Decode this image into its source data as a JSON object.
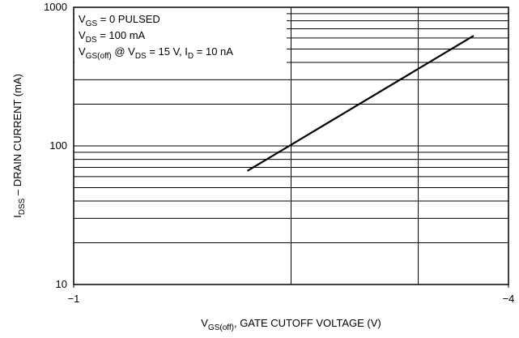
{
  "chart_data": {
    "type": "line",
    "xlabel": [
      {
        "text": "V"
      },
      {
        "text": "GS(off)",
        "sub": true
      },
      {
        "text": ", GATE CUTOFF VOLTAGE (V)"
      }
    ],
    "ylabel": [
      {
        "text": "I"
      },
      {
        "text": "DSS",
        "sub": true
      },
      {
        "text": " – DRAIN CURRENT (mA)"
      }
    ],
    "annotations": [
      [
        {
          "text": "V"
        },
        {
          "text": "GS",
          "sub": true
        },
        {
          "text": " = 0 PULSED"
        }
      ],
      [
        {
          "text": "V"
        },
        {
          "text": "DS",
          "sub": true
        },
        {
          "text": " = 100 mA"
        }
      ],
      [
        {
          "text": "V"
        },
        {
          "text": "GS(off)",
          "sub": true
        },
        {
          "text": " @ V"
        },
        {
          "text": "DS",
          "sub": true
        },
        {
          "text": " = 15 V, I"
        },
        {
          "text": "D",
          "sub": true
        },
        {
          "text": " = 10 nA"
        }
      ]
    ],
    "xscale": "log",
    "yscale": "log",
    "xlim": [
      -1,
      -4
    ],
    "ylim": [
      10,
      1000
    ],
    "xticks": [
      {
        "value": -1,
        "label": "−1"
      },
      {
        "value": -4,
        "label": "−4"
      }
    ],
    "xgrid": [
      -2,
      -3
    ],
    "yticks": [
      10,
      100,
      1000
    ],
    "ygrid": [
      20,
      30,
      40,
      50,
      60,
      70,
      80,
      90,
      200,
      300,
      400,
      500,
      600,
      700,
      800,
      900
    ],
    "series": [
      {
        "x": [
          -1.74,
          -3.58
        ],
        "values": [
          66,
          624
        ],
        "color": "#000000"
      }
    ]
  }
}
